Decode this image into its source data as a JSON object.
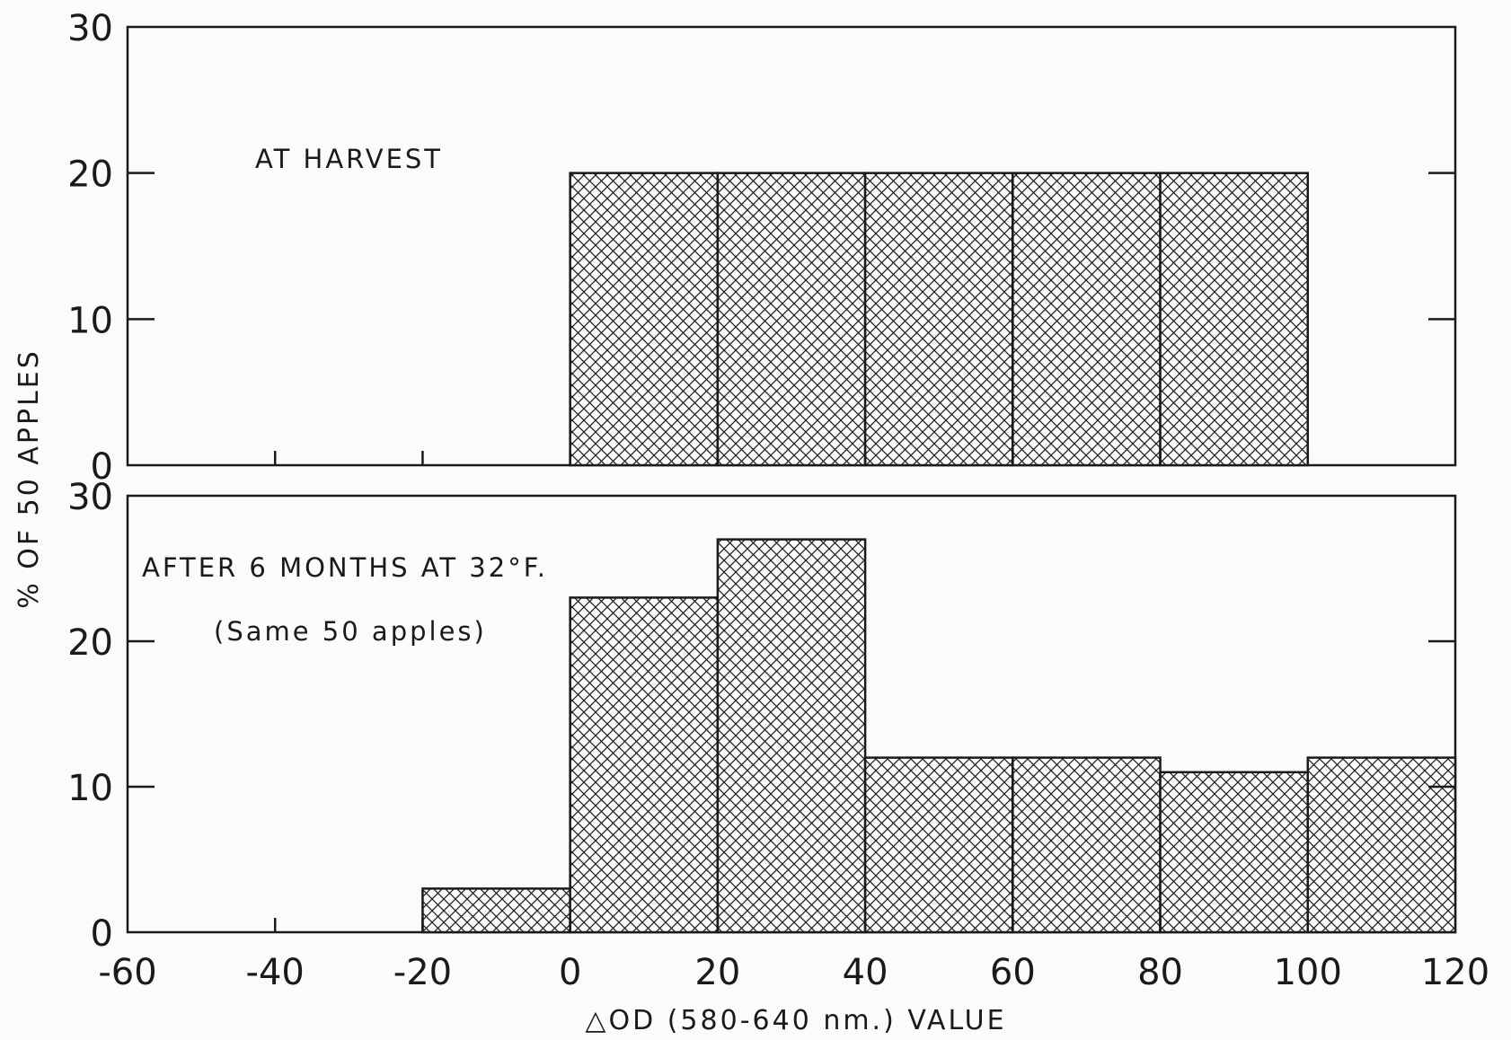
{
  "chart_data": [
    {
      "type": "bar",
      "panel": "top",
      "annotation_lines": [
        "AT HARVEST"
      ],
      "bin_edges": [
        -60,
        -40,
        -20,
        0,
        20,
        40,
        60,
        80,
        100,
        120
      ],
      "bins": [
        {
          "from": 0,
          "to": 20,
          "value": 20
        },
        {
          "from": 20,
          "to": 40,
          "value": 20
        },
        {
          "from": 40,
          "to": 60,
          "value": 20
        },
        {
          "from": 60,
          "to": 80,
          "value": 20
        },
        {
          "from": 80,
          "to": 100,
          "value": 20
        }
      ],
      "xlim": [
        -60,
        120
      ],
      "ylim": [
        0,
        30
      ],
      "y_ticks": [
        "0",
        "10",
        "20",
        "30"
      ]
    },
    {
      "type": "bar",
      "panel": "bottom",
      "annotation_lines": [
        "AFTER 6 MONTHS AT 32°F.",
        "(Same 50 apples)"
      ],
      "bin_edges": [
        -60,
        -40,
        -20,
        0,
        20,
        40,
        60,
        80,
        100,
        120
      ],
      "bins": [
        {
          "from": -20,
          "to": 0,
          "value": 3
        },
        {
          "from": 0,
          "to": 20,
          "value": 23
        },
        {
          "from": 20,
          "to": 40,
          "value": 27
        },
        {
          "from": 40,
          "to": 60,
          "value": 12
        },
        {
          "from": 60,
          "to": 80,
          "value": 12
        },
        {
          "from": 80,
          "to": 100,
          "value": 11
        },
        {
          "from": 100,
          "to": 120,
          "value": 12
        }
      ],
      "xlim": [
        -60,
        120
      ],
      "ylim": [
        0,
        30
      ],
      "y_ticks": [
        "0",
        "10",
        "20",
        "30"
      ]
    }
  ],
  "axes": {
    "xlabel": "△OD (580-640 nm.) VALUE",
    "ylabel": "% OF 50 APPLES",
    "x_tick_labels": [
      "-60",
      "-40",
      "-20",
      "0",
      "20",
      "40",
      "60",
      "80",
      "100",
      "120"
    ]
  },
  "colors": {
    "ink": "#1a1a1a",
    "paper": "#fbfbfa"
  }
}
